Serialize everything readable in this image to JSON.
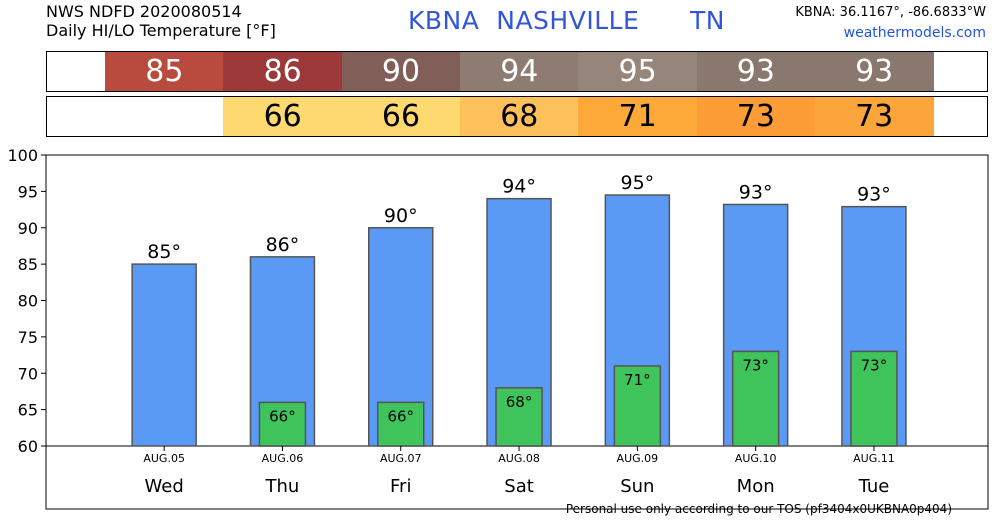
{
  "header": {
    "line1": "NWS NDFD 2020080514",
    "line2": "Daily HI/LO Temperature [°F]",
    "station": "KBNA  NASHVILLE      TN",
    "coords": "KBNA: 36.1167°, -86.6833°W",
    "site": "weathermodels.com"
  },
  "footer": "Personal use only according to our TOS (pf3404x0UKBNA0p404)",
  "hi_strip": {
    "values": [
      "85",
      "86",
      "90",
      "94",
      "95",
      "93",
      "93"
    ],
    "colors": [
      "#b84a3e",
      "#9c3a3a",
      "#825e58",
      "#8e7c73",
      "#95857b",
      "#8a776e",
      "#8a776e"
    ]
  },
  "lo_strip": {
    "values": [
      "66",
      "66",
      "68",
      "71",
      "73",
      "73"
    ],
    "colors": [
      "#fed970",
      "#fed970",
      "#fdc05a",
      "#fda93a",
      "#fc9d38",
      "#fca53a"
    ]
  },
  "chart_data": {
    "type": "bar",
    "days": [
      "Wed",
      "Thu",
      "Fri",
      "Sat",
      "Sun",
      "Mon",
      "Tue"
    ],
    "dates": [
      "AUG.05",
      "AUG.06",
      "AUG.07",
      "AUG.08",
      "AUG.09",
      "AUG.10",
      "AUG.11"
    ],
    "series": [
      {
        "name": "HI",
        "values": [
          85,
          86,
          90,
          94,
          94.5,
          93.2,
          92.9
        ],
        "labels": [
          "85°",
          "86°",
          "90°",
          "94°",
          "95°",
          "93°",
          "93°"
        ],
        "color": "#5a9af5"
      },
      {
        "name": "LO",
        "values": [
          null,
          66,
          66,
          68,
          71,
          73,
          73
        ],
        "labels": [
          "",
          "66°",
          "66°",
          "68°",
          "71°",
          "73°",
          "73°"
        ],
        "color": "#3ec45a"
      }
    ],
    "ylim": [
      60,
      100
    ],
    "yticks": [
      60,
      65,
      70,
      75,
      80,
      85,
      90,
      95,
      100
    ],
    "grid": false
  }
}
